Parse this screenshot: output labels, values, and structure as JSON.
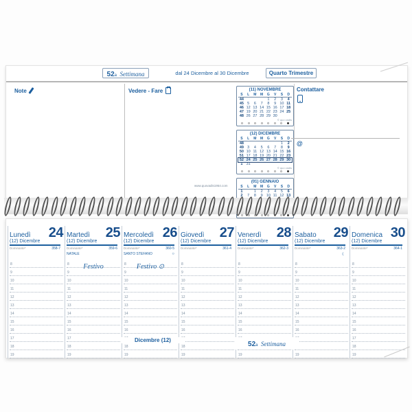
{
  "header": {
    "week_number": "52",
    "week_suffix": "a",
    "week_word": "Settimana",
    "date_range": "dal 24 Dicembre al 30 Dicembre",
    "quarter": "Quarto Trimestre"
  },
  "labels": {
    "note": "Note",
    "vedere_fare": "Vedere - Fare",
    "contattare": "Contattare",
    "at_symbol": "@",
    "url": "www.quovadis1954.com",
    "cal_footer": "© quo vadis"
  },
  "mini_calendars": [
    {
      "title": "(11) NOVEMBRE",
      "day_headers": [
        "S",
        "L",
        "M",
        "M",
        "G",
        "V",
        "S",
        "D"
      ],
      "rows": [
        {
          "w": "44",
          "d1": "",
          "d2": "",
          "d3": "",
          "d4": "1",
          "d5": "2",
          "d6": "3",
          "d7": "4"
        },
        {
          "w": "45",
          "d1": "5",
          "d2": "6",
          "d3": "7",
          "d4": "8",
          "d5": "9",
          "d6": "10",
          "d7": "11"
        },
        {
          "w": "46",
          "d1": "12",
          "d2": "13",
          "d3": "14",
          "d4": "15",
          "d5": "16",
          "d6": "17",
          "d7": "18"
        },
        {
          "w": "47",
          "d1": "19",
          "d2": "20",
          "d3": "21",
          "d4": "22",
          "d5": "23",
          "d6": "24",
          "d7": "25"
        },
        {
          "w": "48",
          "d1": "26",
          "d2": "27",
          "d3": "28",
          "d4": "29",
          "d5": "30",
          "d6": "",
          "d7": ""
        }
      ]
    },
    {
      "title": "(12) DICEMBRE",
      "day_headers": [
        "S",
        "L",
        "M",
        "M",
        "G",
        "V",
        "S",
        "D"
      ],
      "rows": [
        {
          "w": "48",
          "d1": "",
          "d2": "",
          "d3": "",
          "d4": "",
          "d5": "",
          "d6": "1",
          "d7": "2"
        },
        {
          "w": "49",
          "d1": "3",
          "d2": "4",
          "d3": "5",
          "d4": "6",
          "d5": "7",
          "d6": "8",
          "d7": "9"
        },
        {
          "w": "50",
          "d1": "10",
          "d2": "11",
          "d3": "12",
          "d4": "13",
          "d5": "14",
          "d6": "15",
          "d7": "16"
        },
        {
          "w": "51",
          "d1": "17",
          "d2": "18",
          "d3": "19",
          "d4": "20",
          "d5": "21",
          "d6": "22",
          "d7": "23"
        },
        {
          "w": "52",
          "d1": "24",
          "d2": "25",
          "d3": "26",
          "d4": "27",
          "d5": "28",
          "d6": "29",
          "d7": "30",
          "hl": true
        },
        {
          "w": "1",
          "d1": "31",
          "d2": "",
          "d3": "",
          "d4": "",
          "d5": "",
          "d6": "",
          "d7": ""
        }
      ]
    },
    {
      "title": "(01) GENNAIO",
      "day_headers": [
        "S",
        "L",
        "M",
        "M",
        "G",
        "V",
        "S",
        "D"
      ],
      "rows": [
        {
          "w": "1",
          "d1": "",
          "d2": "1",
          "d3": "2",
          "d4": "3",
          "d5": "4",
          "d6": "5",
          "d7": "6"
        },
        {
          "w": "2",
          "d1": "7",
          "d2": "8",
          "d3": "9",
          "d4": "10",
          "d5": "11",
          "d6": "12",
          "d7": "13"
        },
        {
          "w": "3",
          "d1": "14",
          "d2": "15",
          "d3": "16",
          "d4": "17",
          "d5": "18",
          "d6": "19",
          "d7": "20"
        },
        {
          "w": "4",
          "d1": "21",
          "d2": "22",
          "d3": "23",
          "d4": "24",
          "d5": "25",
          "d6": "26",
          "d7": "27"
        },
        {
          "w": "5",
          "d1": "28",
          "d2": "29",
          "d3": "30",
          "d4": "31",
          "d5": "",
          "d6": "",
          "d7": ""
        }
      ]
    }
  ],
  "days": [
    {
      "name": "Lunedì",
      "number": "24",
      "month": "(12) Dicembre",
      "dominante": "Dominante*",
      "count": "358-7",
      "holiday": "",
      "moon": "",
      "festivo": ""
    },
    {
      "name": "Martedì",
      "number": "25",
      "month": "(12) Dicembre",
      "dominante": "Dominante*",
      "count": "359-6",
      "holiday": "NATALE",
      "moon": "",
      "festivo": "Festivo"
    },
    {
      "name": "Mercoledì",
      "number": "26",
      "month": "(12) Dicembre",
      "dominante": "Dominante*",
      "count": "360-5",
      "holiday": "SANTO STEFANO",
      "moon": "○",
      "festivo": "Festivo ⊙"
    },
    {
      "name": "Giovedì",
      "number": "27",
      "month": "(12) Dicembre",
      "dominante": "Dominante*",
      "count": "361-4",
      "holiday": "",
      "moon": "",
      "festivo": ""
    },
    {
      "name": "Venerdì",
      "number": "28",
      "month": "(12) Dicembre",
      "dominante": "Dominante*",
      "count": "362-3",
      "holiday": "",
      "moon": "",
      "festivo": ""
    },
    {
      "name": "Sabato",
      "number": "29",
      "month": "(12) Dicembre",
      "dominante": "Dominante*",
      "count": "363-2",
      "holiday": "",
      "moon": "☾",
      "festivo": ""
    },
    {
      "name": "Domenica",
      "number": "30",
      "month": "(12) Dicembre",
      "dominante": "Dominante*",
      "count": "364-1",
      "holiday": "",
      "moon": "",
      "festivo": ""
    }
  ],
  "hours": [
    "8",
    "9",
    "10",
    "11",
    "12",
    "13",
    "14",
    "15",
    "16",
    "17",
    "18",
    "19"
  ],
  "footer": {
    "month": "Dicembre (12)",
    "week_number": "52",
    "week_suffix": "a",
    "week_word": "Settimana"
  },
  "colors": {
    "accent_blue": "#1b5e9e",
    "number_blue": "#184e8c",
    "rule_gray": "#b5b5b5"
  }
}
